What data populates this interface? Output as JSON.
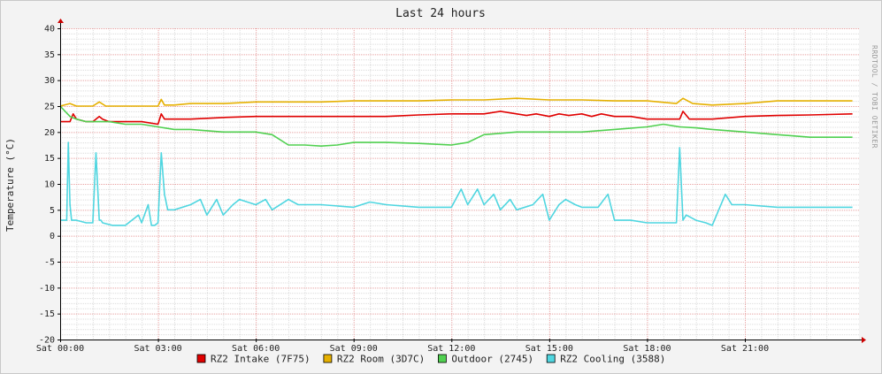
{
  "chart_data": {
    "type": "line",
    "title": "Last 24 hours",
    "ylabel": "Temperature (°C)",
    "watermark": "RRDTOOL / TOBI OETIKER",
    "ylim": [
      -20,
      40
    ],
    "y_ticks": [
      40,
      35,
      30,
      25,
      20,
      15,
      10,
      5,
      0,
      -5,
      -10,
      -15,
      -20
    ],
    "xlim": [
      0,
      24.5
    ],
    "x_ticks": [
      {
        "x": 0,
        "label": "Sat 00:00"
      },
      {
        "x": 3,
        "label": "Sat 03:00"
      },
      {
        "x": 6,
        "label": "Sat 06:00"
      },
      {
        "x": 9,
        "label": "Sat 09:00"
      },
      {
        "x": 12,
        "label": "Sat 12:00"
      },
      {
        "x": 15,
        "label": "Sat 15:00"
      },
      {
        "x": 18,
        "label": "Sat 18:00"
      },
      {
        "x": 21,
        "label": "Sat 21:00"
      }
    ],
    "x_unit": "hours",
    "colors": {
      "background": "#ffffff",
      "canvas": "#f3f3f3",
      "major_grid": "#e8a0a0",
      "minor_grid": "#dcdcdc",
      "axis": "#000000",
      "arrow": "#cc0000"
    },
    "series": [
      {
        "name": "RZ2 Intake (7F75)",
        "color": "#e00000",
        "x": [
          0,
          0.3,
          0.4,
          0.5,
          0.8,
          1.0,
          1.2,
          1.3,
          1.5,
          2.0,
          2.5,
          3.0,
          3.1,
          3.2,
          3.5,
          4.0,
          5.0,
          6.0,
          7.0,
          8.0,
          9.0,
          10.0,
          11.0,
          12.0,
          13.0,
          13.5,
          14.0,
          14.3,
          14.6,
          15.0,
          15.3,
          15.6,
          16.0,
          16.3,
          16.6,
          17.0,
          17.5,
          18.0,
          18.5,
          19.0,
          19.1,
          19.3,
          20.0,
          21.0,
          22.0,
          23.0,
          24.3
        ],
        "y": [
          22,
          22,
          23.5,
          22.5,
          22,
          22,
          23,
          22.5,
          22,
          22,
          22,
          21.5,
          23.5,
          22.5,
          22.5,
          22.5,
          22.8,
          23,
          23,
          23,
          23,
          23,
          23.3,
          23.5,
          23.5,
          24,
          23.5,
          23.2,
          23.5,
          23,
          23.5,
          23.2,
          23.5,
          23,
          23.5,
          23,
          23,
          22.5,
          22.5,
          22.5,
          24,
          22.5,
          22.5,
          23,
          23.2,
          23.3,
          23.5
        ]
      },
      {
        "name": "RZ2 Room (3D7C)",
        "color": "#e6b000",
        "x": [
          0,
          0.3,
          0.5,
          1.0,
          1.2,
          1.4,
          2.0,
          2.5,
          3.0,
          3.1,
          3.2,
          3.5,
          4.0,
          5.0,
          6.0,
          7.0,
          8.0,
          9.0,
          10.0,
          11.0,
          12.0,
          13.0,
          14.0,
          15.0,
          16.0,
          17.0,
          18.0,
          18.9,
          19.1,
          19.4,
          20.0,
          21.0,
          22.0,
          23.0,
          24.3
        ],
        "y": [
          25,
          25.5,
          25,
          25,
          25.8,
          25,
          25,
          25,
          25,
          26.3,
          25.2,
          25.2,
          25.5,
          25.5,
          25.8,
          25.8,
          25.8,
          26,
          26,
          26,
          26.2,
          26.2,
          26.5,
          26.2,
          26.2,
          26,
          26,
          25.5,
          26.5,
          25.5,
          25.2,
          25.5,
          26,
          26,
          26
        ]
      },
      {
        "name": "Outdoor (2745)",
        "color": "#50d050",
        "x": [
          0,
          0.3,
          0.5,
          0.8,
          1.0,
          1.5,
          2.0,
          2.5,
          3.0,
          3.5,
          4.0,
          5.0,
          6.0,
          6.5,
          7.0,
          7.5,
          8.0,
          8.5,
          9.0,
          10.0,
          11.0,
          12.0,
          12.5,
          13.0,
          14.0,
          15.0,
          16.0,
          17.0,
          18.0,
          18.5,
          19.0,
          19.5,
          20.0,
          21.0,
          22.0,
          23.0,
          24.3
        ],
        "y": [
          25,
          23,
          22.5,
          22,
          22,
          22,
          21.5,
          21.5,
          21,
          20.5,
          20.5,
          20,
          20,
          19.5,
          17.5,
          17.5,
          17.3,
          17.5,
          18,
          18,
          17.8,
          17.5,
          18,
          19.5,
          20,
          20,
          20,
          20.5,
          21,
          21.5,
          21,
          20.8,
          20.5,
          20,
          19.5,
          19,
          19
        ]
      },
      {
        "name": "RZ2 Cooling (3588)",
        "color": "#4fd6e0",
        "x": [
          0,
          0.2,
          0.25,
          0.3,
          0.35,
          0.5,
          0.8,
          1.0,
          1.1,
          1.2,
          1.25,
          1.3,
          1.6,
          2.0,
          2.4,
          2.5,
          2.7,
          2.8,
          2.9,
          3.0,
          3.1,
          3.2,
          3.3,
          3.5,
          4.0,
          4.3,
          4.5,
          4.8,
          5.0,
          5.3,
          5.5,
          6.0,
          6.3,
          6.5,
          7.0,
          7.3,
          7.5,
          8.0,
          9.0,
          9.5,
          10.0,
          11.0,
          12.0,
          12.3,
          12.5,
          12.8,
          13.0,
          13.3,
          13.5,
          13.8,
          14.0,
          14.5,
          14.8,
          15.0,
          15.3,
          15.5,
          15.8,
          16.0,
          16.5,
          16.8,
          17.0,
          17.5,
          18.0,
          18.5,
          18.9,
          19.0,
          19.1,
          19.2,
          19.5,
          19.8,
          20.0,
          20.2,
          20.4,
          20.6,
          21.0,
          22.0,
          23.0,
          24.3
        ],
        "y": [
          3,
          3,
          18,
          6,
          3,
          3,
          2.5,
          2.5,
          16,
          3,
          3,
          2.5,
          2,
          2,
          4,
          2.5,
          6,
          2,
          2,
          2.5,
          16,
          8,
          5,
          5,
          6,
          7,
          4,
          7,
          4,
          6,
          7,
          6,
          7,
          5,
          7,
          6,
          6,
          6,
          5.5,
          6.5,
          6,
          5.5,
          5.5,
          9,
          6,
          9,
          6,
          8,
          5,
          7,
          5,
          6,
          8,
          3,
          6,
          7,
          6,
          5.5,
          5.5,
          8,
          3,
          3,
          2.5,
          2.5,
          2.5,
          17,
          3,
          4,
          3,
          2.5,
          2,
          5,
          8,
          6,
          6,
          5.5,
          5.5,
          5.5
        ]
      }
    ]
  }
}
